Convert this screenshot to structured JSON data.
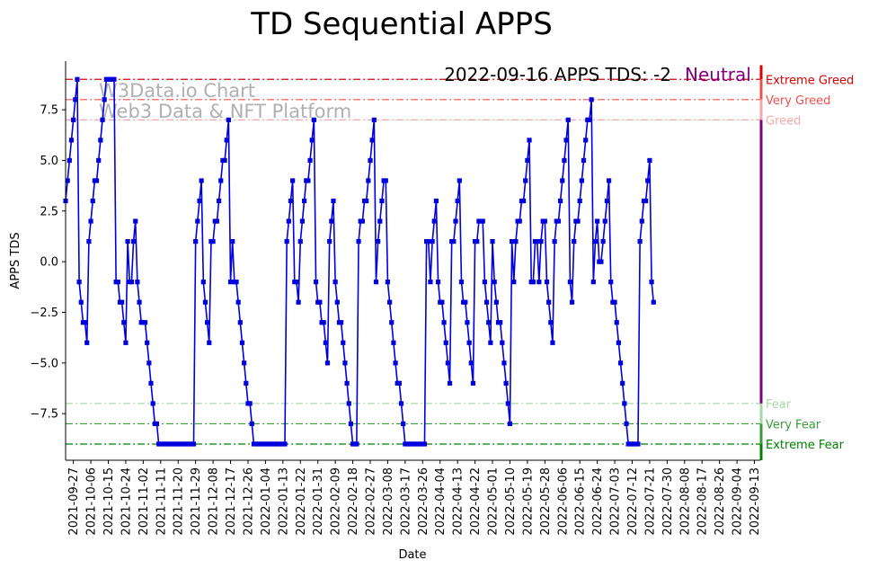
{
  "chart_data": {
    "type": "line",
    "title": "TD Sequential APPS",
    "xlabel": "Date",
    "ylabel": "APPS TDS",
    "ylim": [
      -9.8,
      9.9
    ],
    "yticks": [
      {
        "v": 7.5,
        "label": "7.5"
      },
      {
        "v": 5,
        "label": "5.0"
      },
      {
        "v": 2.5,
        "label": "2.5"
      },
      {
        "v": 0,
        "label": "0.0"
      },
      {
        "v": -2.5,
        "label": "−2.5"
      },
      {
        "v": -5,
        "label": "−5.0"
      },
      {
        "v": -7.5,
        "label": "−7.5"
      }
    ],
    "xtick_labels": [
      "2021-09-27",
      "2021-10-06",
      "2021-10-15",
      "2021-10-24",
      "2021-11-02",
      "2021-11-11",
      "2021-11-20",
      "2021-11-29",
      "2021-12-08",
      "2021-12-17",
      "2021-12-26",
      "2022-01-04",
      "2022-01-13",
      "2022-01-22",
      "2022-01-31",
      "2022-02-09",
      "2022-02-18",
      "2022-02-27",
      "2022-03-08",
      "2022-03-17",
      "2022-03-26",
      "2022-04-04",
      "2022-04-13",
      "2022-04-22",
      "2022-05-01",
      "2022-05-10",
      "2022-05-19",
      "2022-05-28",
      "2022-06-06",
      "2022-06-15",
      "2022-06-24",
      "2022-07-03",
      "2022-07-12",
      "2022-07-21",
      "2022-07-30",
      "2022-08-08",
      "2022-08-17",
      "2022-08-26",
      "2022-09-04",
      "2022-09-13"
    ],
    "x_start": "2021-09-23",
    "x_end": "2022-09-16",
    "series": [
      {
        "name": "APPS TDS",
        "color": "#0000dd",
        "values": [
          3,
          4,
          5,
          6,
          7,
          8,
          9,
          -1,
          -2,
          -3,
          -3,
          -4,
          1,
          2,
          3,
          4,
          4,
          5,
          6,
          7,
          8,
          9,
          9,
          9,
          9,
          9,
          -1,
          -1,
          -2,
          -2,
          -3,
          -4,
          1,
          -1,
          -1,
          1,
          2,
          -1,
          -2,
          -3,
          -3,
          -3,
          -4,
          -5,
          -6,
          -7,
          -8,
          -8,
          -9,
          -9,
          -9,
          -9,
          -9,
          -9,
          -9,
          -9,
          -9,
          -9,
          -9,
          -9,
          -9,
          -9,
          -9,
          -9,
          -9,
          -9,
          -9,
          1,
          2,
          3,
          4,
          -1,
          -2,
          -3,
          -4,
          1,
          1,
          2,
          2,
          3,
          4,
          5,
          5,
          6,
          7,
          -1,
          1,
          -1,
          -1,
          -2,
          -3,
          -4,
          -5,
          -6,
          -7,
          -7,
          -8,
          -9,
          -9,
          -9,
          -9,
          -9,
          -9,
          -9,
          -9,
          -9,
          -9,
          -9,
          -9,
          -9,
          -9,
          -9,
          -9,
          -9,
          1,
          2,
          3,
          4,
          -1,
          -1,
          -2,
          1,
          2,
          3,
          4,
          4,
          5,
          6,
          7,
          -1,
          -2,
          -2,
          -3,
          -3,
          -4,
          -5,
          1,
          2,
          3,
          -1,
          -2,
          -3,
          -3,
          -4,
          -5,
          -6,
          -7,
          -8,
          -9,
          -9,
          -9,
          1,
          2,
          2,
          3,
          3,
          4,
          5,
          6,
          7,
          -1,
          1,
          2,
          3,
          4,
          4,
          -1,
          -2,
          -3,
          -4,
          -5,
          -6,
          -6,
          -7,
          -8,
          -9,
          -9,
          -9,
          -9,
          -9,
          -9,
          -9,
          -9,
          -9,
          -9,
          -9,
          1,
          1,
          -1,
          1,
          2,
          3,
          -1,
          -2,
          -2,
          -3,
          -4,
          -5,
          -6,
          1,
          1,
          2,
          3,
          4,
          -1,
          -2,
          -2,
          -3,
          -4,
          -5,
          -6,
          1,
          1,
          2,
          2,
          2,
          -1,
          -2,
          -3,
          -4,
          1,
          -1,
          -2,
          -3,
          -3,
          -4,
          -5,
          -6,
          -7,
          -8,
          1,
          -1,
          1,
          2,
          2,
          3,
          3,
          4,
          5,
          6,
          -1,
          -1,
          1,
          1,
          -1,
          1,
          2,
          2,
          -1,
          -2,
          -3,
          -4,
          1,
          2,
          2,
          3,
          4,
          5,
          6,
          7,
          -1,
          -2,
          1,
          2,
          2,
          3,
          4,
          5,
          6,
          7,
          7,
          8,
          -1,
          1,
          2,
          0,
          0,
          1,
          2,
          3,
          4,
          -1,
          -2,
          -2,
          -3,
          -4,
          -5,
          -6,
          -7,
          -8,
          -9,
          -9,
          -9,
          -9,
          -9,
          -9,
          1,
          2,
          3,
          3,
          4,
          5,
          -1,
          -2
        ]
      }
    ],
    "reference_lines": [
      {
        "v": 9,
        "label": "Extreme Greed",
        "color": "#dd0000"
      },
      {
        "v": 8,
        "label": "Very Greed",
        "color": "#f05050"
      },
      {
        "v": 7,
        "label": "Greed",
        "color": "#f4a8a8"
      },
      {
        "v": -7,
        "label": "Fear",
        "color": "#a8d8a8"
      },
      {
        "v": -8,
        "label": "Very Fear",
        "color": "#3a9a3a"
      },
      {
        "v": -9,
        "label": "Extreme Fear",
        "color": "#008000"
      }
    ],
    "annotation": {
      "text": "2022-09-16 APPS TDS: -2",
      "state": "Neutral",
      "state_color": "#800080"
    },
    "watermark": [
      "W3Data.io Chart",
      "Web3 Data & NFT Platform"
    ]
  }
}
